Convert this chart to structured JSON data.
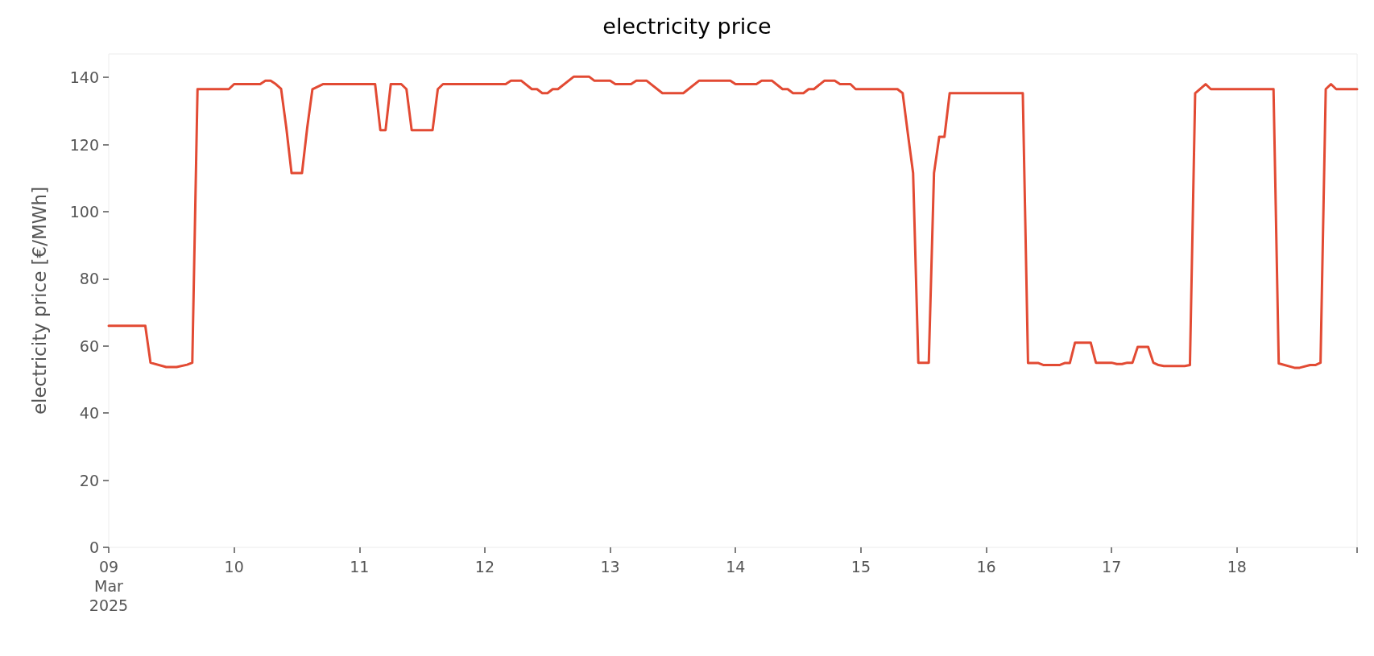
{
  "chart_data": {
    "type": "line",
    "title": "electricity price",
    "ylabel": "electricity price [€/MWh]",
    "x": [
      "2025-03-09T00:00",
      "2025-03-09T07:00",
      "2025-03-09T08:00",
      "2025-03-09T11:00",
      "2025-03-09T13:00",
      "2025-03-09T15:00",
      "2025-03-09T16:00",
      "2025-03-09T17:00",
      "2025-03-09T23:00",
      "2025-03-10T00:00",
      "2025-03-10T05:00",
      "2025-03-10T06:00",
      "2025-03-10T07:00",
      "2025-03-10T08:00",
      "2025-03-10T09:00",
      "2025-03-10T10:00",
      "2025-03-10T11:00",
      "2025-03-10T13:00",
      "2025-03-10T14:00",
      "2025-03-10T15:00",
      "2025-03-10T17:00",
      "2025-03-11T03:00",
      "2025-03-11T04:00",
      "2025-03-11T05:00",
      "2025-03-11T06:00",
      "2025-03-11T08:00",
      "2025-03-11T09:00",
      "2025-03-11T10:00",
      "2025-03-11T14:00",
      "2025-03-11T15:00",
      "2025-03-11T16:00",
      "2025-03-12T04:00",
      "2025-03-12T05:00",
      "2025-03-12T07:00",
      "2025-03-12T09:00",
      "2025-03-12T10:00",
      "2025-03-12T11:00",
      "2025-03-12T12:00",
      "2025-03-12T13:00",
      "2025-03-12T14:00",
      "2025-03-12T17:00",
      "2025-03-12T20:00",
      "2025-03-12T21:00",
      "2025-03-13T00:00",
      "2025-03-13T01:00",
      "2025-03-13T04:00",
      "2025-03-13T05:00",
      "2025-03-13T07:00",
      "2025-03-13T10:00",
      "2025-03-13T14:00",
      "2025-03-13T17:00",
      "2025-03-13T23:00",
      "2025-03-14T00:00",
      "2025-03-14T04:00",
      "2025-03-14T05:00",
      "2025-03-14T07:00",
      "2025-03-14T09:00",
      "2025-03-14T10:00",
      "2025-03-14T11:00",
      "2025-03-14T13:00",
      "2025-03-14T14:00",
      "2025-03-14T15:00",
      "2025-03-14T17:00",
      "2025-03-14T19:00",
      "2025-03-14T20:00",
      "2025-03-14T22:00",
      "2025-03-14T23:00",
      "2025-03-15T07:00",
      "2025-03-15T08:00",
      "2025-03-15T09:00",
      "2025-03-15T10:00",
      "2025-03-15T11:00",
      "2025-03-15T13:00",
      "2025-03-15T14:00",
      "2025-03-15T15:00",
      "2025-03-15T16:00",
      "2025-03-15T17:00",
      "2025-03-16T07:00",
      "2025-03-16T08:00",
      "2025-03-16T10:00",
      "2025-03-16T11:00",
      "2025-03-16T14:00",
      "2025-03-16T15:00",
      "2025-03-16T16:00",
      "2025-03-16T17:00",
      "2025-03-16T20:00",
      "2025-03-16T21:00",
      "2025-03-17T00:00",
      "2025-03-17T01:00",
      "2025-03-17T02:00",
      "2025-03-17T03:00",
      "2025-03-17T04:00",
      "2025-03-17T05:00",
      "2025-03-17T07:00",
      "2025-03-17T08:00",
      "2025-03-17T09:00",
      "2025-03-17T10:00",
      "2025-03-17T14:00",
      "2025-03-17T15:00",
      "2025-03-17T16:00",
      "2025-03-17T18:00",
      "2025-03-17T19:00",
      "2025-03-18T07:00",
      "2025-03-18T08:00",
      "2025-03-18T11:00",
      "2025-03-18T12:00",
      "2025-03-18T14:00",
      "2025-03-18T15:00",
      "2025-03-18T16:00",
      "2025-03-18T17:00",
      "2025-03-18T18:00",
      "2025-03-18T19:00",
      "2025-03-18T23:00"
    ],
    "series": [
      {
        "color": "#e24a33",
        "values": [
          66,
          66,
          55,
          53.7,
          53.7,
          54.4,
          55,
          136.5,
          136.5,
          138,
          138,
          139,
          139,
          138,
          136.6,
          125,
          111.5,
          111.5,
          125,
          136.5,
          138,
          138,
          124.3,
          124.3,
          138,
          138,
          136.5,
          124.3,
          124.3,
          136.5,
          138,
          138,
          139,
          139,
          136.5,
          136.5,
          135.3,
          135.3,
          136.5,
          136.5,
          140.2,
          140.2,
          139,
          139,
          138,
          138,
          139,
          139,
          135.3,
          135.3,
          139,
          139,
          138,
          138,
          139,
          139,
          136.5,
          136.5,
          135.3,
          135.3,
          136.5,
          136.5,
          139,
          139,
          138,
          138,
          136.5,
          136.5,
          135.3,
          123.2,
          111.5,
          55,
          55,
          111.5,
          122.3,
          122.3,
          135.3,
          135.3,
          54.9,
          54.9,
          54.3,
          54.3,
          54.9,
          54.9,
          61,
          61,
          55,
          55,
          54.6,
          54.6,
          55,
          55,
          59.7,
          59.7,
          55,
          54.3,
          54,
          54,
          54.3,
          135.3,
          138,
          136.5,
          136.5,
          54.8,
          53.5,
          53.5,
          54.3,
          54.3,
          55,
          136.5,
          138,
          136.5,
          136.5
        ]
      }
    ],
    "xlim": [
      "2025-03-09T00:00",
      "2025-03-18T23:00"
    ],
    "xticks": [
      {
        "value": "2025-03-09",
        "label": "09\nMar\n2025"
      },
      {
        "value": "2025-03-10",
        "label": "10"
      },
      {
        "value": "2025-03-11",
        "label": "11"
      },
      {
        "value": "2025-03-12",
        "label": "12"
      },
      {
        "value": "2025-03-13",
        "label": "13"
      },
      {
        "value": "2025-03-14",
        "label": "14"
      },
      {
        "value": "2025-03-15",
        "label": "15"
      },
      {
        "value": "2025-03-16",
        "label": "16"
      },
      {
        "value": "2025-03-17",
        "label": "17"
      },
      {
        "value": "2025-03-18",
        "label": "18"
      },
      {
        "value": "2025-03-18T23:00",
        "label": null
      }
    ],
    "ylim": [
      0,
      147
    ],
    "yticks": [
      0,
      20,
      40,
      60,
      80,
      100,
      120,
      140
    ],
    "grid": false,
    "marker": "none",
    "line_style": "solid"
  }
}
